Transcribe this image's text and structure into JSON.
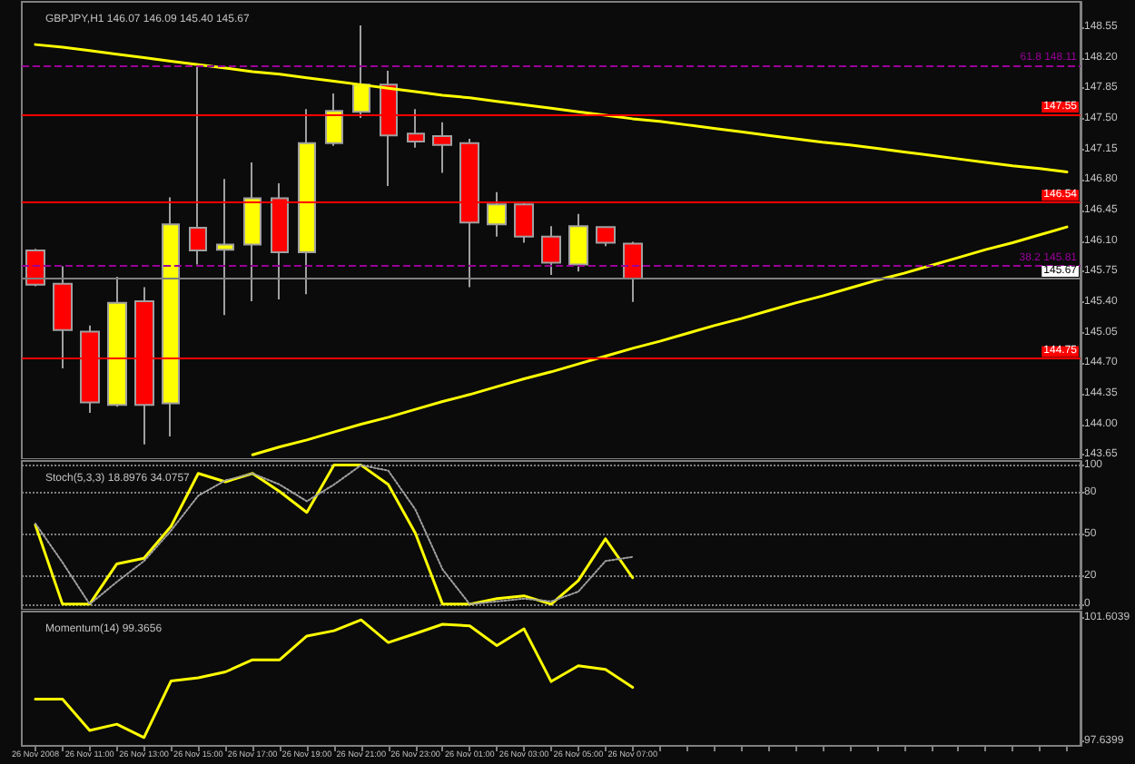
{
  "chart_data": [
    {
      "type": "candlestick",
      "title": "GBPJPY,H1 146.07 146.09 145.40 145.67",
      "categories": [
        null,
        null,
        null,
        null,
        null,
        null,
        null,
        null,
        null,
        null,
        null,
        null,
        null,
        null,
        null,
        null,
        null,
        null,
        null,
        null,
        null,
        null,
        null,
        null,
        null,
        null,
        null,
        null,
        null,
        null,
        null,
        null,
        null,
        null,
        null,
        null,
        null,
        null,
        null
      ],
      "ohlc": [
        [
          145.99,
          146.01,
          145.58,
          145.6
        ],
        [
          145.61,
          145.81,
          144.64,
          145.08
        ],
        [
          145.06,
          145.13,
          144.13,
          144.25
        ],
        [
          144.22,
          145.69,
          144.2,
          145.39
        ],
        [
          145.41,
          145.57,
          143.77,
          144.22
        ],
        [
          144.24,
          146.6,
          143.86,
          146.29
        ],
        [
          146.25,
          148.1,
          145.83,
          145.99
        ],
        [
          146.0,
          146.81,
          145.25,
          146.06
        ],
        [
          146.06,
          147.0,
          145.41,
          146.59
        ],
        [
          146.59,
          146.76,
          145.43,
          145.97
        ],
        [
          145.97,
          147.61,
          145.49,
          147.22
        ],
        [
          147.22,
          147.79,
          147.19,
          147.59
        ],
        [
          147.58,
          148.57,
          147.51,
          147.89
        ],
        [
          147.89,
          148.05,
          146.73,
          147.31
        ],
        [
          147.33,
          147.61,
          147.17,
          147.24
        ],
        [
          147.3,
          147.46,
          146.88,
          147.2
        ],
        [
          147.22,
          147.27,
          145.57,
          146.31
        ],
        [
          146.29,
          146.66,
          146.15,
          146.52
        ],
        [
          146.52,
          146.55,
          146.08,
          146.15
        ],
        [
          146.15,
          146.27,
          145.71,
          145.85
        ],
        [
          145.83,
          146.41,
          145.75,
          146.27
        ],
        [
          146.26,
          146.27,
          146.04,
          146.08
        ],
        [
          146.07,
          146.09,
          145.4,
          145.67
        ],
        null,
        null,
        null,
        null,
        null,
        null,
        null,
        null,
        null,
        null,
        null,
        null,
        null,
        null,
        null,
        null
      ],
      "colors": [
        "#ff0000",
        "#ff0000",
        "#ff0000",
        "#ffff00",
        "#ff0000",
        "#ffff00",
        "#ff0000",
        "#ffff00",
        "#ffff00",
        "#ff0000",
        "#ffff00",
        "#ffff00",
        "#ffff00",
        "#ff0000",
        "#ff0000",
        "#ff0000",
        "#ff0000",
        "#ffff00",
        "#ff0000",
        "#ff0000",
        "#ffff00",
        "#ff0000",
        "#ff0000",
        null,
        null,
        null,
        null,
        null,
        null,
        null,
        null,
        null,
        null,
        null,
        null,
        null,
        null,
        null,
        null
      ],
      "series": [
        {
          "type": "line",
          "color": "#ffff00",
          "values": [
            148.35,
            148.32,
            148.28,
            148.24,
            148.2,
            148.16,
            148.12,
            148.08,
            148.04,
            148.01,
            147.97,
            147.93,
            147.89,
            147.85,
            147.81,
            147.77,
            147.74,
            147.7,
            147.66,
            147.62,
            147.58,
            147.54,
            147.5,
            147.47,
            147.43,
            147.39,
            147.35,
            147.31,
            147.27,
            147.23,
            147.2,
            147.16,
            147.12,
            147.08,
            147.04,
            147.0,
            146.96,
            146.93,
            146.89
          ]
        },
        {
          "type": "line",
          "color": "#ffff00",
          "values": [
            null,
            null,
            null,
            null,
            null,
            null,
            null,
            null,
            143.65,
            143.74,
            143.82,
            143.91,
            144.0,
            144.08,
            144.17,
            144.26,
            144.34,
            144.43,
            144.52,
            144.6,
            144.69,
            144.78,
            144.87,
            144.95,
            145.04,
            145.13,
            145.21,
            145.3,
            145.39,
            145.47,
            145.56,
            145.65,
            145.73,
            145.82,
            145.91,
            146.0,
            146.08,
            146.17,
            146.26
          ]
        }
      ],
      "ylim": [
        143.6,
        148.84
      ],
      "yticks": [
        {
          "value": 143.65,
          "label": "143.65"
        },
        {
          "value": 144.0,
          "label": "144.00"
        },
        {
          "value": 144.35,
          "label": "144.35"
        },
        {
          "value": 144.7,
          "label": "144.70"
        },
        {
          "value": 145.05,
          "label": "145.05"
        },
        {
          "value": 145.4,
          "label": "145.40"
        },
        {
          "value": 145.75,
          "label": "145.75"
        },
        {
          "value": 146.1,
          "label": "146.10"
        },
        {
          "value": 146.45,
          "label": "146.45"
        },
        {
          "value": 146.8,
          "label": "146.80"
        },
        {
          "value": 147.15,
          "label": "147.15"
        },
        {
          "value": 147.5,
          "label": "147.50"
        },
        {
          "value": 147.85,
          "label": "147.85"
        },
        {
          "value": 148.2,
          "label": "148.20"
        },
        {
          "value": 148.55,
          "label": "148.55"
        }
      ],
      "ref_lines": [
        {
          "axis": "y",
          "value": 147.55,
          "label": "147.55",
          "color": "#ff0000"
        },
        {
          "axis": "y",
          "value": 146.54,
          "label": "146.54",
          "color": "#ff0000"
        },
        {
          "axis": "y",
          "value": 144.75,
          "label": "144.75",
          "color": "#ff0000"
        },
        {
          "axis": "y",
          "value": 148.11,
          "label": "61.8 148.11",
          "color": "#990099",
          "line_style": "dashed"
        },
        {
          "axis": "y",
          "value": 145.81,
          "label": "38.2 145.81",
          "color": "#990099",
          "line_style": "dashed"
        },
        {
          "axis": "y",
          "value": 145.67,
          "label": "145.67",
          "color": "#808080"
        }
      ],
      "tick_labels": "y"
    },
    {
      "type": "line",
      "title": "Stoch(5,3,3) 18.8976 34.0757",
      "categories": [
        null,
        null,
        null,
        null,
        null,
        null,
        null,
        null,
        null,
        null,
        null,
        null,
        null,
        null,
        null,
        null,
        null,
        null,
        null,
        null,
        null,
        null,
        null,
        null,
        null,
        null,
        null,
        null,
        null,
        null,
        null,
        null,
        null,
        null,
        null,
        null,
        null,
        null,
        null
      ],
      "series": [
        {
          "values": [
            57,
            0,
            0,
            29,
            33,
            56,
            94,
            88,
            94,
            81,
            66,
            100,
            100,
            86,
            51,
            0,
            0,
            4,
            6,
            0,
            17,
            47,
            19,
            null,
            null,
            null,
            null,
            null,
            null,
            null,
            null,
            null,
            null,
            null,
            null,
            null,
            null,
            null,
            null
          ],
          "color": "#ffff00"
        },
        {
          "values": [
            58,
            30,
            0,
            16,
            31,
            53,
            78,
            89,
            94,
            86,
            74,
            86,
            100,
            96,
            68,
            25,
            0,
            2,
            4,
            2,
            9,
            31,
            34,
            null,
            null,
            null,
            null,
            null,
            null,
            null,
            null,
            null,
            null,
            null,
            null,
            null,
            null,
            null,
            null
          ],
          "color": "#a0a0a0",
          "line_style": "dotted"
        }
      ],
      "ylim": [
        -4,
        103
      ],
      "yticks": [
        0,
        20,
        50,
        80,
        100
      ],
      "grid": "y",
      "marker": "none",
      "tick_labels": "y"
    },
    {
      "type": "line",
      "title": "Momentum(14) 99.3656",
      "categories": [
        "26 Nov 2008",
        null,
        "26 Nov 11:00",
        null,
        "26 Nov 13:00",
        null,
        "26 Nov 15:00",
        null,
        "26 Nov 17:00",
        null,
        "26 Nov 19:00",
        null,
        "26 Nov 21:00",
        null,
        "26 Nov 23:00",
        null,
        "26 Nov 01:00",
        null,
        "26 Nov 03:00",
        null,
        "26 Nov 05:00",
        null,
        "26 Nov 07:00",
        null,
        null,
        null,
        null,
        null,
        null,
        null,
        null,
        null,
        null,
        null,
        null,
        null,
        null,
        null,
        null
      ],
      "series": [
        {
          "values": [
            98.99,
            98.99,
            97.98,
            98.18,
            97.75,
            99.58,
            99.68,
            99.87,
            100.26,
            100.26,
            101.03,
            101.2,
            101.55,
            100.82,
            101.11,
            101.41,
            101.36,
            100.72,
            101.26,
            99.56,
            100.07,
            99.95,
            99.37,
            null,
            null,
            null,
            null,
            null,
            null,
            null,
            null,
            null,
            null,
            null,
            null,
            null,
            null,
            null,
            null
          ],
          "color": "#ffff00"
        }
      ],
      "ylim": [
        97.48,
        101.82
      ],
      "yticks": [
        97.6399,
        101.6039
      ],
      "marker": "none"
    }
  ]
}
